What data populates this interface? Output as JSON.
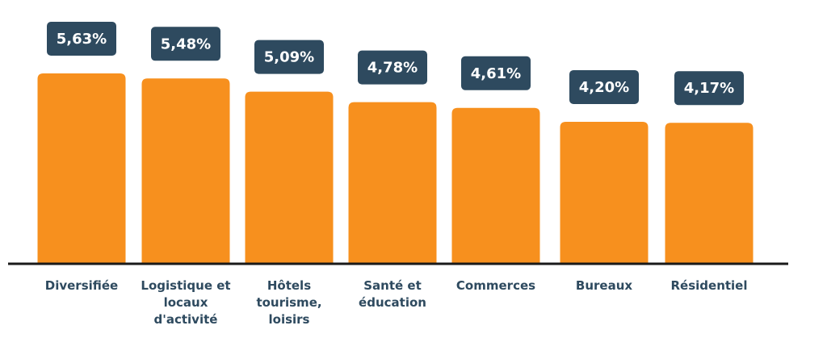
{
  "chart_data": {
    "type": "bar",
    "categories": [
      [
        "Diversifiée"
      ],
      [
        "Logistique et",
        "locaux",
        "d'activité"
      ],
      [
        "Hôtels",
        "tourisme,",
        "loisirs"
      ],
      [
        "Santé et",
        "éducation"
      ],
      [
        "Commerces"
      ],
      [
        "Bureaux"
      ],
      [
        "Résidentiel"
      ]
    ],
    "values": [
      5.63,
      5.48,
      5.09,
      4.78,
      4.61,
      4.2,
      4.17
    ],
    "value_labels": [
      "5,63%",
      "5,48%",
      "5,09%",
      "4,78%",
      "4,61%",
      "4,20%",
      "4,17%"
    ],
    "title": "",
    "xlabel": "",
    "ylabel": "",
    "ylim": [
      0,
      5.63
    ],
    "grid": false,
    "colors": {
      "bar": "#F7901E",
      "badge": "#2E4A5F",
      "label": "#2E4A5F",
      "axis": "#1a1a1a"
    }
  }
}
